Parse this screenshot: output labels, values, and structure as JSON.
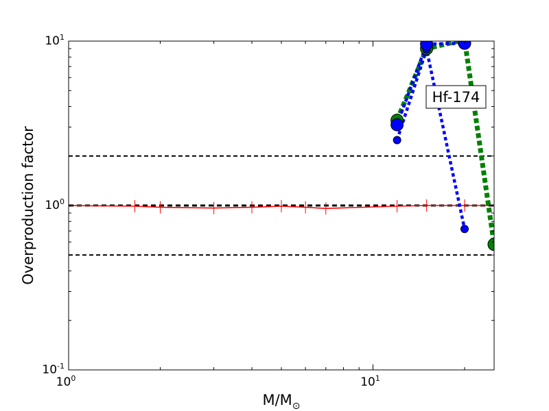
{
  "chart_data": {
    "type": "line",
    "title": "",
    "annotation": "Hf-174",
    "xlabel": "M/M",
    "xlabel_sub": "⊙",
    "ylabel": "Overproduction factor",
    "xscale": "log",
    "yscale": "log",
    "xlim": [
      1,
      25
    ],
    "ylim": [
      0.1,
      10
    ],
    "x_ticks": [
      {
        "value": 1,
        "base": "10",
        "exp": "0"
      },
      {
        "value": 10,
        "base": "10",
        "exp": "1"
      }
    ],
    "y_ticks": [
      {
        "value": 0.1,
        "base": "10",
        "exp": "-1"
      },
      {
        "value": 1,
        "base": "10",
        "exp": "0"
      },
      {
        "value": 10,
        "base": "10",
        "exp": "1"
      }
    ],
    "reference_lines": [
      0.5,
      1.0,
      2.0
    ],
    "grid": false,
    "series": [
      {
        "color": "#ff0000",
        "style": "solid",
        "x": [
          1,
          1.65,
          2,
          3,
          4,
          5,
          6,
          7,
          12,
          15,
          20,
          25
        ],
        "y": [
          1.0,
          0.99,
          0.975,
          0.965,
          0.975,
          0.99,
          0.975,
          0.96,
          0.99,
          1.0,
          1.0,
          1.0
        ]
      },
      {
        "color": "#008000",
        "style": "dotted-thick",
        "x": [
          12,
          15,
          20,
          25
        ],
        "y": [
          3.3,
          9.0,
          10.2,
          0.58
        ],
        "marker_sizes": [
          "large",
          "large",
          "large",
          "large"
        ]
      },
      {
        "color": "#0000ff",
        "style": "dotted",
        "x": [
          12,
          15,
          20
        ],
        "y": [
          2.5,
          8.9,
          0.72
        ],
        "marker_sizes": [
          "small",
          "small",
          "small"
        ]
      },
      {
        "color": "#0000ff",
        "style": "dotted",
        "x": [
          12,
          15,
          20
        ],
        "y": [
          3.1,
          9.6,
          9.7
        ],
        "marker_sizes": [
          "large",
          "large",
          "large"
        ]
      }
    ]
  }
}
